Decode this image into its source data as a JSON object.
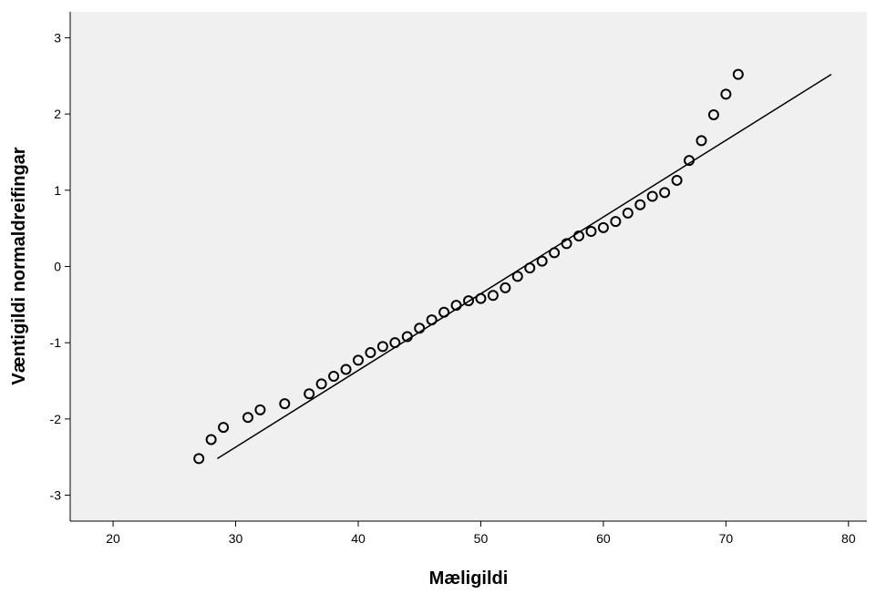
{
  "chart_data": {
    "type": "scatter",
    "title": "",
    "xlabel": "Mæligildi",
    "ylabel": "Væntigildi normaldreifingar",
    "xlim": [
      16.5,
      81.5
    ],
    "ylim": [
      -3.34,
      3.34
    ],
    "xticks": [
      20,
      30,
      40,
      50,
      60,
      70,
      80
    ],
    "yticks": [
      -3,
      -2,
      -1,
      0,
      1,
      2,
      3
    ],
    "tick_labels_x": [
      "20",
      "30",
      "40",
      "50",
      "60",
      "70",
      "80"
    ],
    "tick_labels_y": [
      "-3",
      "-2",
      "-1",
      "0",
      "1",
      "2",
      "3"
    ],
    "grid": false,
    "background_color": "#f0f0f0",
    "marker": "open-circle",
    "points": [
      {
        "x": 27,
        "y": -2.52
      },
      {
        "x": 28,
        "y": -2.27
      },
      {
        "x": 29,
        "y": -2.11
      },
      {
        "x": 31,
        "y": -1.98
      },
      {
        "x": 32,
        "y": -1.88
      },
      {
        "x": 34,
        "y": -1.8
      },
      {
        "x": 36,
        "y": -1.67
      },
      {
        "x": 37,
        "y": -1.54
      },
      {
        "x": 38,
        "y": -1.44
      },
      {
        "x": 39,
        "y": -1.35
      },
      {
        "x": 40,
        "y": -1.23
      },
      {
        "x": 41,
        "y": -1.13
      },
      {
        "x": 42,
        "y": -1.05
      },
      {
        "x": 43,
        "y": -1.0
      },
      {
        "x": 44,
        "y": -0.92
      },
      {
        "x": 45,
        "y": -0.81
      },
      {
        "x": 46,
        "y": -0.7
      },
      {
        "x": 47,
        "y": -0.6
      },
      {
        "x": 48,
        "y": -0.51
      },
      {
        "x": 49,
        "y": -0.45
      },
      {
        "x": 50,
        "y": -0.42
      },
      {
        "x": 51,
        "y": -0.38
      },
      {
        "x": 52,
        "y": -0.28
      },
      {
        "x": 53,
        "y": -0.13
      },
      {
        "x": 54,
        "y": -0.02
      },
      {
        "x": 55,
        "y": 0.07
      },
      {
        "x": 56,
        "y": 0.18
      },
      {
        "x": 57,
        "y": 0.3
      },
      {
        "x": 58,
        "y": 0.4
      },
      {
        "x": 59,
        "y": 0.46
      },
      {
        "x": 60,
        "y": 0.51
      },
      {
        "x": 61,
        "y": 0.59
      },
      {
        "x": 62,
        "y": 0.7
      },
      {
        "x": 63,
        "y": 0.81
      },
      {
        "x": 64,
        "y": 0.92
      },
      {
        "x": 65,
        "y": 0.97
      },
      {
        "x": 66,
        "y": 1.13
      },
      {
        "x": 67,
        "y": 1.39
      },
      {
        "x": 68,
        "y": 1.65
      },
      {
        "x": 69,
        "y": 1.99
      },
      {
        "x": 70,
        "y": 2.26
      },
      {
        "x": 71,
        "y": 2.52
      }
    ],
    "reference_line": {
      "type": "line",
      "from": {
        "x": 28.5,
        "y": -2.52
      },
      "to": {
        "x": 78.6,
        "y": 2.52
      }
    }
  }
}
